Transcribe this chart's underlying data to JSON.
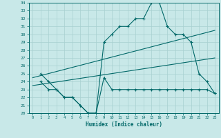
{
  "xlabel": "Humidex (Indice chaleur)",
  "background_color": "#c8e8e8",
  "grid_color": "#a8d0d0",
  "line_color": "#006868",
  "xlim": [
    -0.5,
    23.5
  ],
  "ylim": [
    20,
    34
  ],
  "xticks": [
    0,
    1,
    2,
    3,
    4,
    5,
    6,
    7,
    8,
    9,
    10,
    11,
    12,
    13,
    14,
    15,
    16,
    17,
    18,
    19,
    20,
    21,
    22,
    23
  ],
  "yticks": [
    20,
    21,
    22,
    23,
    24,
    25,
    26,
    27,
    28,
    29,
    30,
    31,
    32,
    33,
    34
  ],
  "series": [
    {
      "x": [
        1,
        2,
        3,
        4,
        5,
        6,
        7,
        8,
        9,
        10,
        11,
        12,
        13,
        14,
        15,
        16,
        17,
        18,
        19,
        20,
        21,
        22,
        23
      ],
      "y": [
        25,
        24,
        23,
        22,
        22,
        21,
        20,
        20,
        29,
        30,
        31,
        31,
        32,
        32,
        34,
        34,
        31,
        30,
        30,
        29,
        25,
        24,
        22.5
      ],
      "markers": true
    },
    {
      "x": [
        1,
        2,
        3,
        4,
        5,
        6,
        7,
        8,
        9,
        10,
        11,
        12,
        13,
        14,
        15,
        16,
        17,
        18,
        19,
        20,
        21,
        22,
        23
      ],
      "y": [
        24,
        23,
        23,
        22,
        22,
        21,
        20,
        20,
        24.5,
        23,
        23,
        23,
        23,
        23,
        23,
        23,
        23,
        23,
        23,
        23,
        23,
        23,
        22.5
      ],
      "markers": true
    },
    {
      "x": [
        0,
        23
      ],
      "y": [
        24.5,
        30.5
      ],
      "markers": false
    },
    {
      "x": [
        0,
        23
      ],
      "y": [
        23.5,
        27
      ],
      "markers": false
    }
  ]
}
